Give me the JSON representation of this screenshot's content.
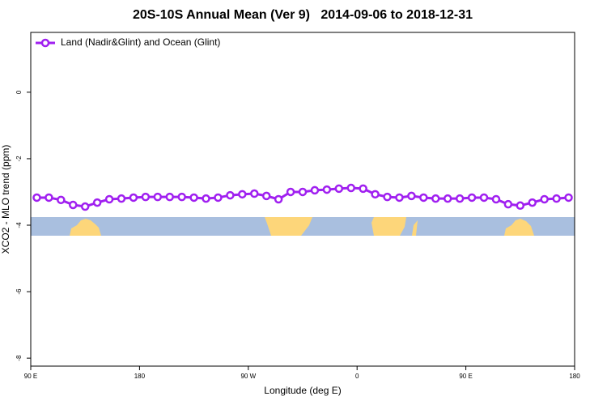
{
  "chart_data": {
    "type": "line",
    "title": "20S-10S Annual Mean (Ver 9)   2014-09-06 to 2018-12-31",
    "x_label": "Longitude (deg E)",
    "y_label": "XCO2 - MLO trend (ppm)",
    "x": [
      95,
      105,
      115,
      125,
      135,
      145,
      155,
      165,
      175,
      185,
      195,
      205,
      215,
      225,
      235,
      245,
      255,
      265,
      275,
      285,
      295,
      305,
      315,
      325,
      335,
      345,
      355,
      365,
      375,
      385,
      395,
      405,
      415,
      425,
      435,
      445,
      455,
      465,
      475,
      485,
      495,
      505,
      515,
      525,
      535
    ],
    "series": [
      {
        "name": "Land (Nadir&Glint) and Ocean (Glint)",
        "color": "#a020f0",
        "values": [
          -3.17,
          -3.17,
          -3.24,
          -3.39,
          -3.44,
          -3.32,
          -3.22,
          -3.2,
          -3.17,
          -3.15,
          -3.15,
          -3.15,
          -3.15,
          -3.17,
          -3.2,
          -3.17,
          -3.1,
          -3.07,
          -3.05,
          -3.12,
          -3.22,
          -3.0,
          -3.0,
          -2.95,
          -2.93,
          -2.9,
          -2.88,
          -2.9,
          -3.07,
          -3.15,
          -3.17,
          -3.12,
          -3.17,
          -3.2,
          -3.2,
          -3.2,
          -3.17,
          -3.17,
          -3.22,
          -3.37,
          -3.41,
          -3.32,
          -3.22,
          -3.2,
          -3.17
        ]
      }
    ],
    "xlim": [
      90,
      540
    ],
    "ylim": [
      -8.24,
      1.8
    ],
    "xticks": [
      {
        "value": 90,
        "label": "90 E"
      },
      {
        "value": 180,
        "label": "180"
      },
      {
        "value": 270,
        "label": "90 W"
      },
      {
        "value": 360,
        "label": "0"
      },
      {
        "value": 450,
        "label": "90 E"
      },
      {
        "value": 540,
        "label": "180"
      }
    ],
    "yticks": [
      0,
      -2,
      -4,
      -6,
      -8
    ],
    "legend": "top-left"
  }
}
